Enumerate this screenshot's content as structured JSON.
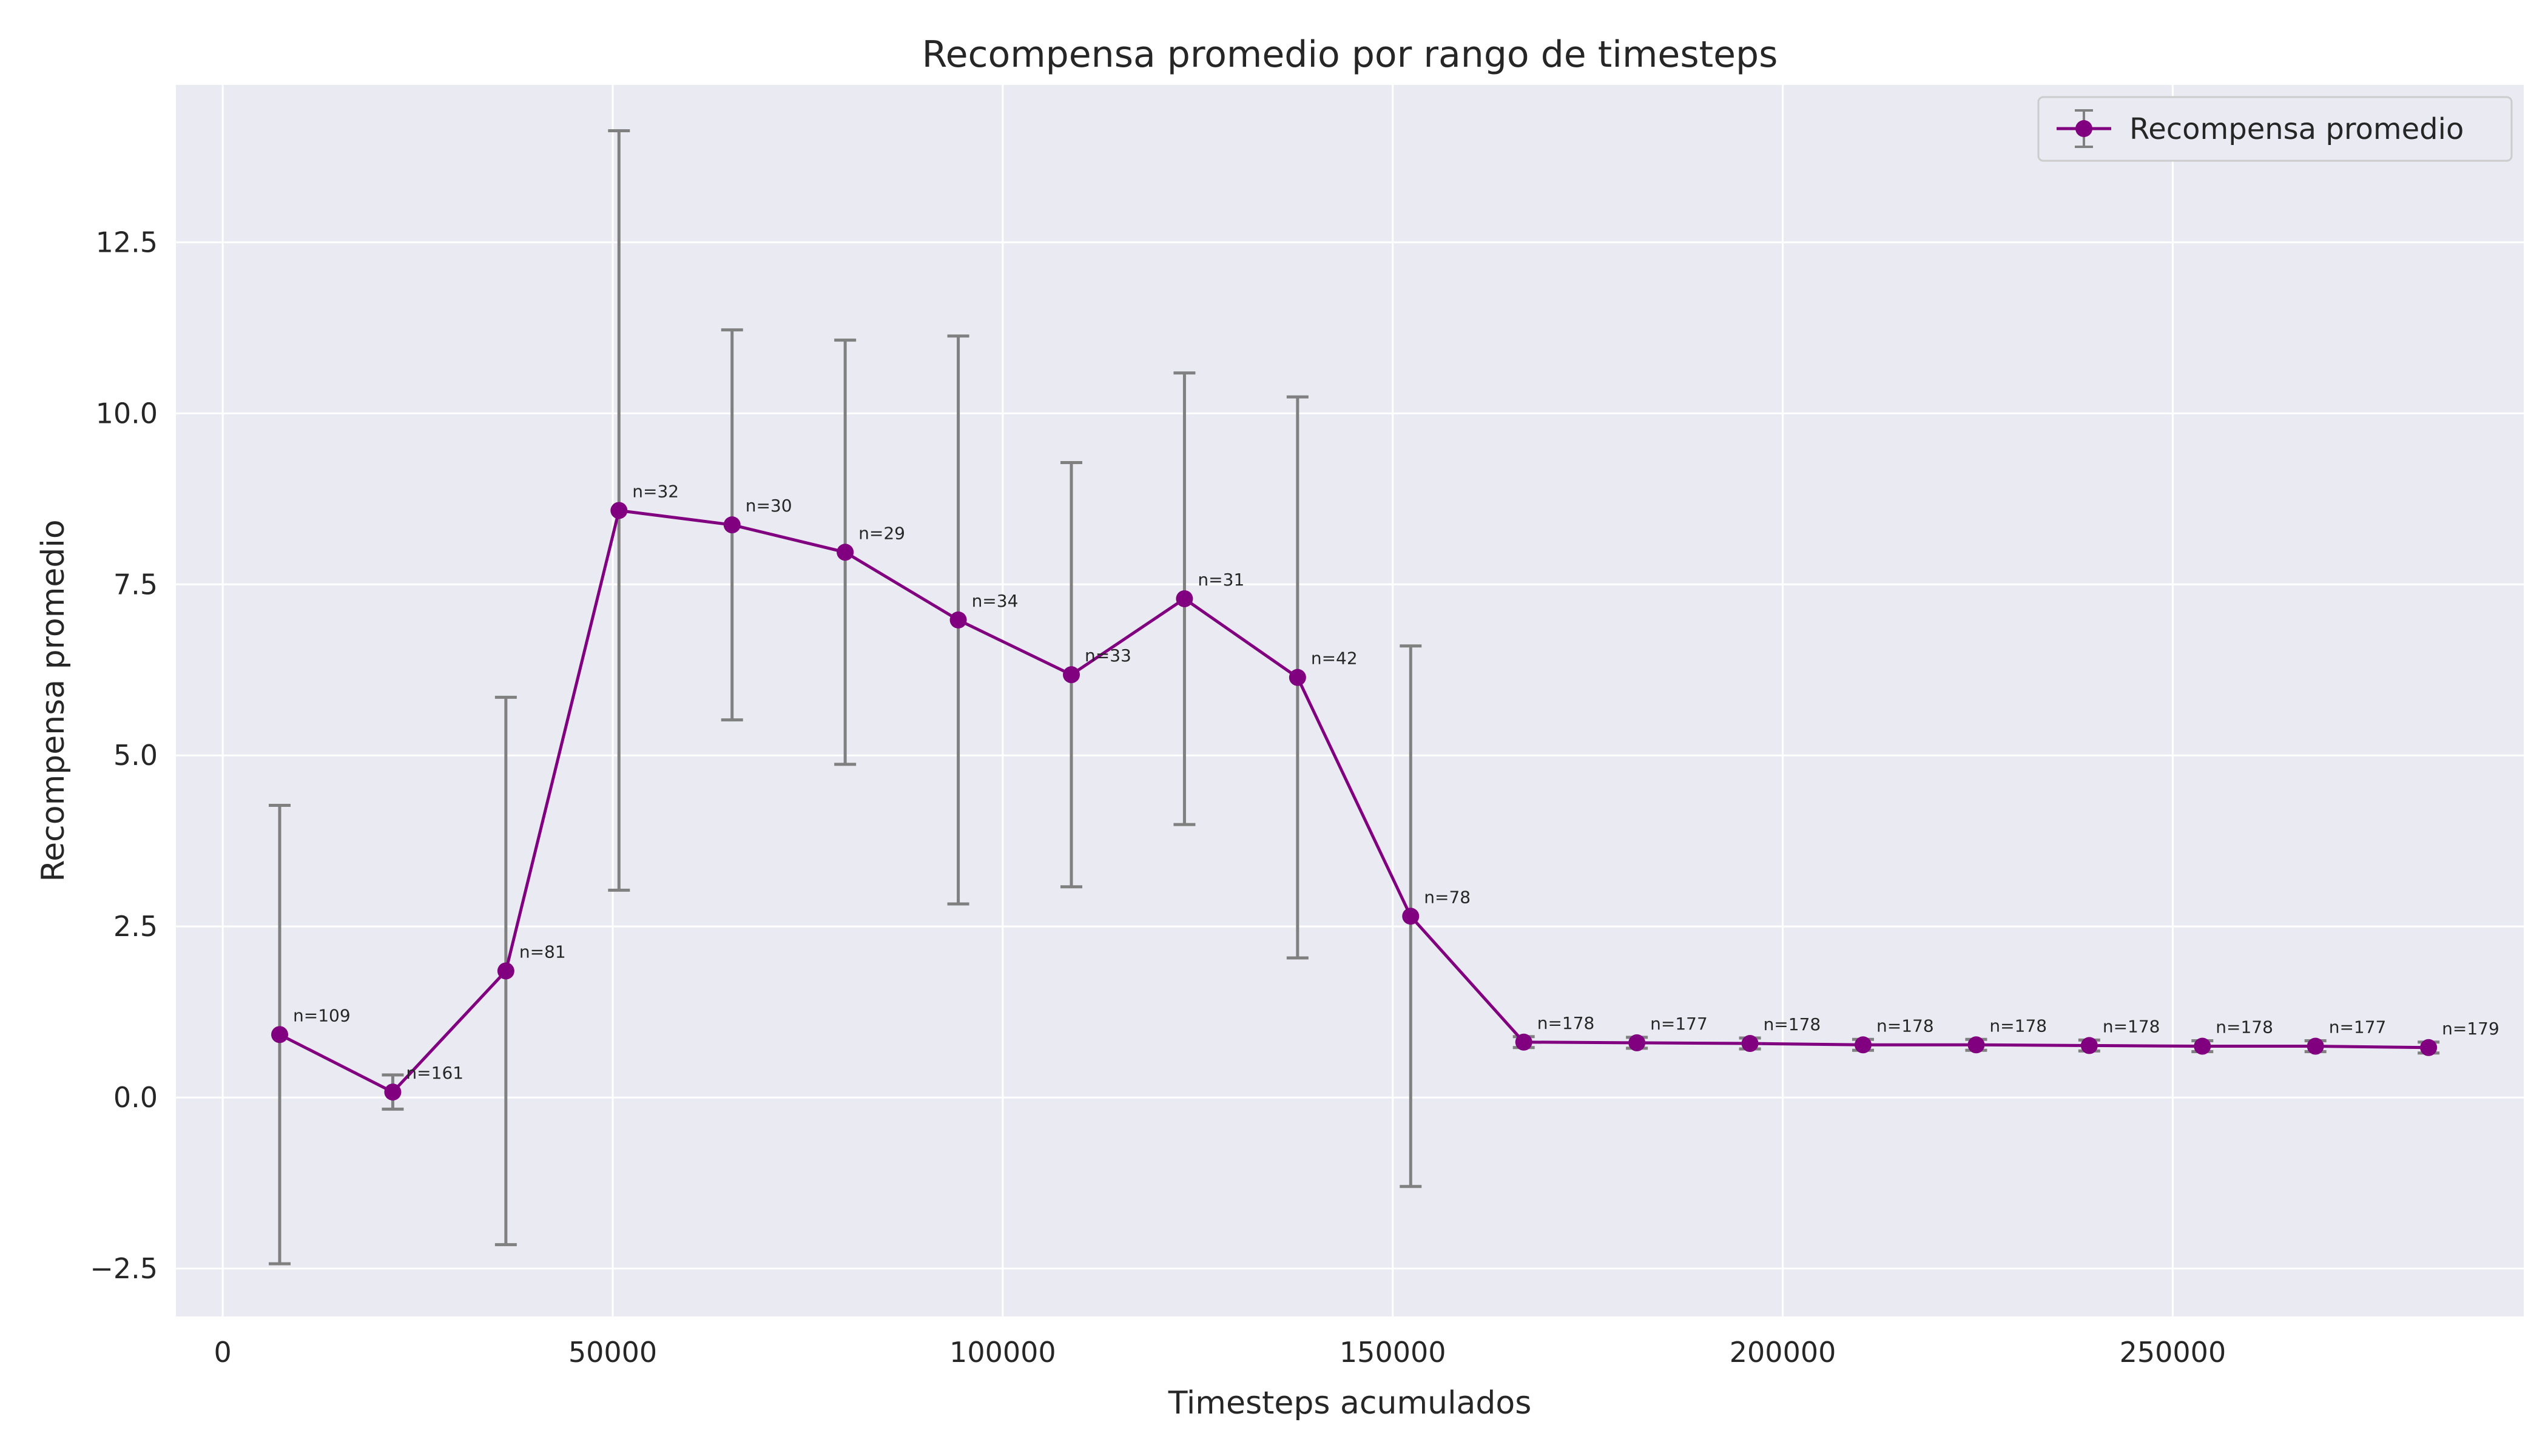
{
  "chart_data": {
    "type": "line",
    "title": "Recompensa promedio por rango de timesteps",
    "xlabel": "Timesteps acumulados",
    "ylabel": "Recompensa promedio",
    "xlim": [
      -6000,
      295000
    ],
    "ylim": [
      -3.2,
      14.8
    ],
    "xticks": [
      0,
      50000,
      100000,
      150000,
      200000,
      250000
    ],
    "xtick_labels": [
      "0",
      "50000",
      "100000",
      "150000",
      "200000",
      "250000"
    ],
    "yticks": [
      -2.5,
      0.0,
      2.5,
      5.0,
      7.5,
      10.0,
      12.5
    ],
    "ytick_labels": [
      "−2.5",
      "0.0",
      "2.5",
      "5.0",
      "7.5",
      "10.0",
      "12.5"
    ],
    "grid": true,
    "legend_position": "top-right",
    "colors": {
      "line": "#800080",
      "errorbar": "#808080",
      "background": "#eaeaf2",
      "grid": "#ffffff"
    },
    "series": [
      {
        "name": "Recompensa promedio",
        "x": [
          7300,
          21800,
          36300,
          50800,
          65300,
          79800,
          94300,
          108800,
          123300,
          137800,
          152300,
          166800,
          181300,
          195800,
          210300,
          224800,
          239300,
          253800,
          268300,
          282800
        ],
        "y": [
          0.92,
          0.08,
          1.85,
          8.58,
          8.37,
          7.97,
          6.98,
          6.18,
          7.29,
          6.14,
          2.65,
          0.81,
          0.8,
          0.79,
          0.77,
          0.77,
          0.76,
          0.75,
          0.75,
          0.73
        ],
        "yerr": [
          3.35,
          0.25,
          4.0,
          5.55,
          2.85,
          3.1,
          4.15,
          3.1,
          3.3,
          4.1,
          3.95,
          0.08,
          0.08,
          0.08,
          0.08,
          0.08,
          0.08,
          0.08,
          0.08,
          0.08
        ],
        "labels": [
          "n=109",
          "n=161",
          "n=81",
          "n=32",
          "n=30",
          "n=29",
          "n=34",
          "n=33",
          "n=31",
          "n=42",
          "n=78",
          "n=178",
          "n=177",
          "n=178",
          "n=178",
          "n=178",
          "n=178",
          "n=178",
          "n=177",
          "n=179"
        ]
      }
    ]
  }
}
